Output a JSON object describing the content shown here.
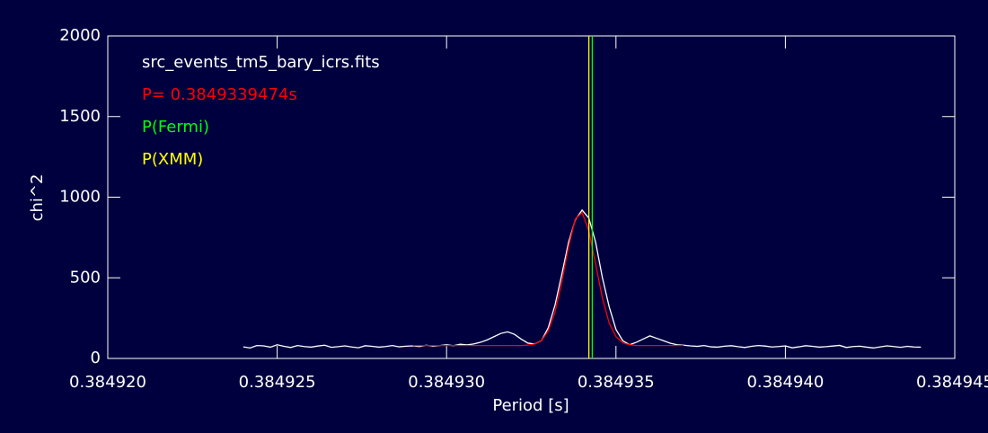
{
  "chart_data": {
    "type": "line",
    "xlabel": "Period [s]",
    "ylabel": "chi^2",
    "xlim": [
      0.38492,
      0.384945
    ],
    "ylim": [
      0,
      2000
    ],
    "xticks": [
      {
        "value": 0.38492,
        "label": "0.384920"
      },
      {
        "value": 0.384925,
        "label": "0.384925"
      },
      {
        "value": 0.38493,
        "label": "0.384930"
      },
      {
        "value": 0.384935,
        "label": "0.384935"
      },
      {
        "value": 0.38494,
        "label": "0.384940"
      },
      {
        "value": 0.384945,
        "label": "0.384945"
      }
    ],
    "yticks": [
      0,
      500,
      1000,
      1500,
      2000
    ],
    "series": [
      {
        "name": "src_events_tm5_bary_icrs.fits",
        "color": "#ffffff",
        "x": [
          0.384924,
          0.3849242,
          0.3849244,
          0.3849246,
          0.3849248,
          0.384925,
          0.3849252,
          0.3849254,
          0.3849256,
          0.3849258,
          0.384926,
          0.3849262,
          0.3849264,
          0.3849266,
          0.3849268,
          0.384927,
          0.3849272,
          0.3849274,
          0.3849276,
          0.3849278,
          0.384928,
          0.3849282,
          0.3849284,
          0.3849286,
          0.3849288,
          0.384929,
          0.3849292,
          0.3849294,
          0.3849296,
          0.3849298,
          0.38493,
          0.3849302,
          0.3849304,
          0.3849306,
          0.3849308,
          0.384931,
          0.3849312,
          0.3849314,
          0.3849316,
          0.3849318,
          0.384932,
          0.3849322,
          0.3849324,
          0.3849326,
          0.3849328,
          0.384933,
          0.3849332,
          0.3849334,
          0.3849336,
          0.3849338,
          0.384934,
          0.3849342,
          0.3849344,
          0.3849346,
          0.3849348,
          0.384935,
          0.3849352,
          0.3849354,
          0.3849356,
          0.3849358,
          0.384936,
          0.3849362,
          0.3849364,
          0.3849366,
          0.3849368,
          0.384937,
          0.3849372,
          0.3849374,
          0.3849376,
          0.3849378,
          0.384938,
          0.3849382,
          0.3849384,
          0.3849386,
          0.3849388,
          0.384939,
          0.3849392,
          0.3849394,
          0.3849396,
          0.3849398,
          0.38494,
          0.3849402,
          0.3849404,
          0.3849406,
          0.3849408,
          0.384941,
          0.3849412,
          0.3849414,
          0.3849416,
          0.3849418,
          0.384942,
          0.3849422,
          0.3849424,
          0.3849426,
          0.3849428,
          0.384943,
          0.3849432,
          0.3849434,
          0.3849436,
          0.3849438,
          0.384944
        ],
        "values": [
          72,
          65,
          80,
          78,
          70,
          85,
          75,
          68,
          80,
          74,
          70,
          77,
          82,
          69,
          73,
          78,
          71,
          66,
          79,
          75,
          70,
          74,
          80,
          72,
          76,
          78,
          74,
          82,
          76,
          80,
          85,
          79,
          88,
          84,
          90,
          100,
          115,
          135,
          155,
          165,
          150,
          120,
          95,
          90,
          110,
          190,
          330,
          520,
          720,
          860,
          920,
          870,
          720,
          500,
          320,
          180,
          110,
          85,
          100,
          120,
          140,
          125,
          110,
          95,
          85,
          82,
          78,
          75,
          80,
          72,
          70,
          76,
          79,
          73,
          68,
          75,
          80,
          77,
          71,
          74,
          78,
          66,
          72,
          79,
          75,
          70,
          73,
          77,
          81,
          68,
          74,
          76,
          70,
          65,
          72,
          78,
          74,
          69,
          75,
          71,
          70
        ]
      },
      {
        "name": "P= 0.3849339474s",
        "color": "#ff0000",
        "x": [
          0.384929,
          0.3849292,
          0.3849294,
          0.3849296,
          0.3849298,
          0.38493,
          0.3849302,
          0.3849304,
          0.3849306,
          0.3849308,
          0.384931,
          0.3849312,
          0.3849314,
          0.3849316,
          0.3849318,
          0.384932,
          0.3849322,
          0.3849324,
          0.3849326,
          0.3849328,
          0.384933,
          0.3849332,
          0.3849334,
          0.3849336,
          0.3849338,
          0.384934,
          0.3849342,
          0.3849344,
          0.3849346,
          0.3849348,
          0.384935,
          0.3849352,
          0.3849354,
          0.3849356,
          0.3849358,
          0.384936,
          0.3849362,
          0.3849364,
          0.3849366,
          0.3849368,
          0.384937
        ],
        "values": [
          80,
          80,
          80,
          80,
          80,
          80,
          80,
          80,
          80,
          80,
          80,
          80,
          80,
          80,
          80,
          80,
          80,
          83,
          89,
          111,
          170,
          287,
          473,
          693,
          865,
          905,
          790,
          584,
          374,
          219,
          135,
          97,
          85,
          80,
          80,
          80,
          80,
          80,
          80,
          80,
          80
        ]
      }
    ],
    "vlines": [
      {
        "name": "P(Fermi)",
        "color": "#00ff00",
        "x": 0.3849343
      },
      {
        "name": "P(XMM)",
        "color": "#ffff00",
        "x": 0.3849342
      }
    ]
  }
}
